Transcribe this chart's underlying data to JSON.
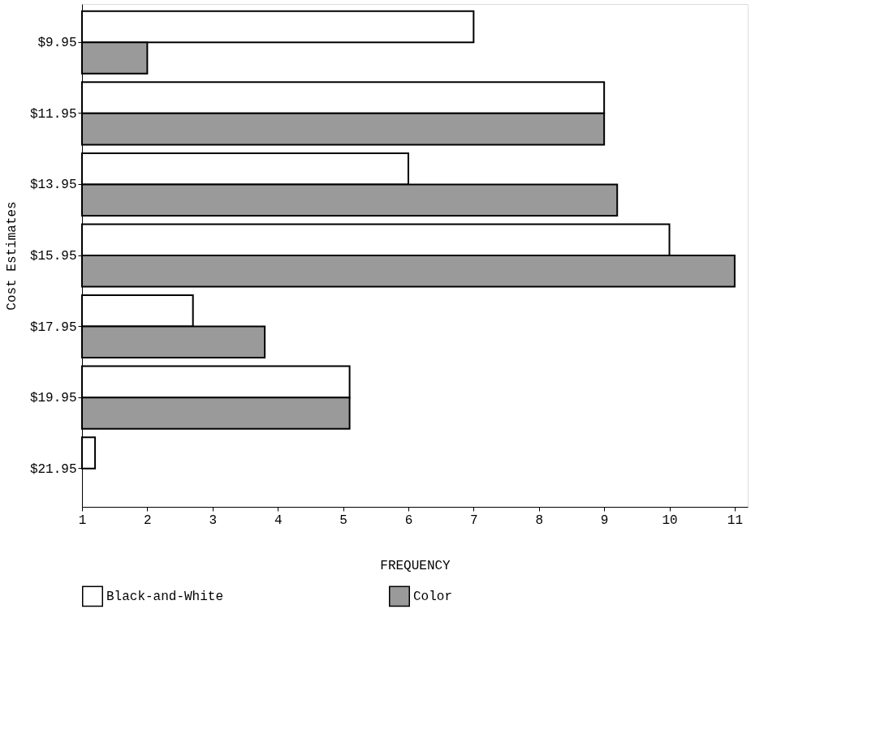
{
  "chart_data": {
    "type": "bar",
    "orientation": "horizontal",
    "xlabel": "FREQUENCY",
    "ylabel": "Cost Estimates",
    "categories": [
      "$9.95",
      "$11.95",
      "$13.95",
      "$15.95",
      "$17.95",
      "$19.95",
      "$21.95"
    ],
    "series": [
      {
        "name": "Black-and-White",
        "color": "#ffffff",
        "values": [
          7,
          9,
          6,
          10,
          2.7,
          5.1,
          1.2
        ]
      },
      {
        "name": "Color",
        "color": "#9a9a9a",
        "values": [
          2,
          9,
          9.2,
          11,
          3.8,
          5.1,
          null
        ]
      }
    ],
    "xlim": [
      1,
      11.2
    ],
    "xticks": [
      1,
      2,
      3,
      4,
      5,
      6,
      7,
      8,
      9,
      10,
      11
    ],
    "grid": false,
    "legend": "bottom"
  }
}
